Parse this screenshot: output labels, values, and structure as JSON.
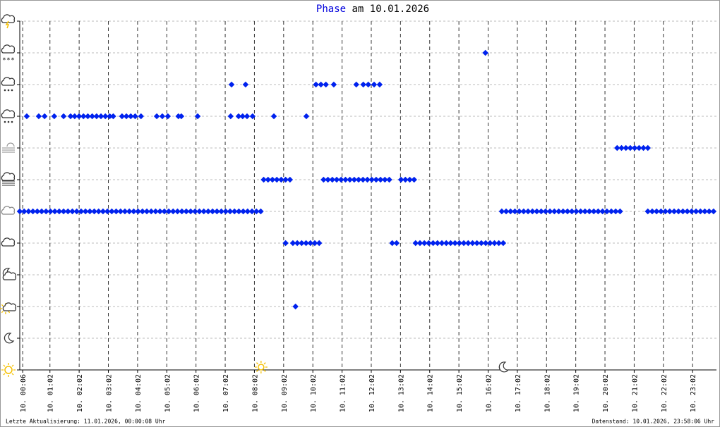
{
  "chart_data": {
    "type": "scatter",
    "title_parts": [
      "Phase",
      "am 10.01.2026"
    ],
    "footer_left": "Letzte Aktualisierung: 11.01.2026, 00:00:08 Uhr",
    "footer_right": "Datenstand: 10.01.2026, 23:58:06 Uhr",
    "xlim": [
      0,
      23.85
    ],
    "ylim": [
      0,
      11
    ],
    "yticks": [
      0,
      1,
      2,
      3,
      4,
      5,
      6,
      7,
      8,
      9,
      10,
      11
    ],
    "xticks": [
      {
        "value": 0.1,
        "label": "10. 00:06"
      },
      {
        "value": 1.033,
        "label": "10. 01:02"
      },
      {
        "value": 2.033,
        "label": "10. 02:02"
      },
      {
        "value": 3.033,
        "label": "10. 03:02"
      },
      {
        "value": 4.033,
        "label": "10. 04:02"
      },
      {
        "value": 5.033,
        "label": "10. 05:02"
      },
      {
        "value": 6.033,
        "label": "10. 06:02"
      },
      {
        "value": 7.033,
        "label": "10. 07:02"
      },
      {
        "value": 8.033,
        "label": "10. 08:02"
      },
      {
        "value": 9.033,
        "label": "10. 09:02"
      },
      {
        "value": 10.033,
        "label": "10. 10:02"
      },
      {
        "value": 11.033,
        "label": "10. 11:02"
      },
      {
        "value": 12.033,
        "label": "10. 12:02"
      },
      {
        "value": 13.033,
        "label": "10. 13:02"
      },
      {
        "value": 14.033,
        "label": "10. 14:02"
      },
      {
        "value": 15.033,
        "label": "10. 15:02"
      },
      {
        "value": 16.033,
        "label": "10. 16:02"
      },
      {
        "value": 17.033,
        "label": "10. 17:02"
      },
      {
        "value": 18.033,
        "label": "10. 18:02"
      },
      {
        "value": 19.033,
        "label": "10. 19:02"
      },
      {
        "value": 20.033,
        "label": "10. 20:02"
      },
      {
        "value": 21.033,
        "label": "10. 21:02"
      },
      {
        "value": 22.033,
        "label": "10. 22:02"
      },
      {
        "value": 23.033,
        "label": "10. 23:02"
      }
    ],
    "grid": true,
    "sunrise": 8.26,
    "sunset": 16.55,
    "series": [
      {
        "color": "#0022ee",
        "x": [
          0.0,
          0.15,
          0.3,
          0.45,
          0.6,
          0.75,
          0.9,
          1.05,
          1.2,
          1.35,
          1.5,
          1.65,
          1.8,
          1.95,
          2.1,
          2.25,
          2.4,
          2.55,
          2.7,
          2.85,
          3.0,
          3.15,
          3.3,
          3.45,
          3.6,
          3.75,
          3.9,
          4.05,
          4.2,
          4.35,
          4.5,
          4.65,
          4.8,
          4.95,
          5.1,
          5.25,
          5.4,
          5.55,
          5.7,
          5.85,
          6.0,
          6.15,
          6.3,
          6.45,
          6.6,
          6.75,
          6.9,
          7.05,
          7.2,
          7.35,
          7.5,
          7.65,
          7.8,
          7.95,
          8.1,
          8.25,
          16.5,
          16.65,
          16.8,
          16.95,
          17.1,
          17.25,
          17.4,
          17.55,
          17.7,
          17.85,
          18.0,
          18.15,
          18.3,
          18.45,
          18.6,
          18.75,
          18.9,
          19.05,
          19.2,
          19.35,
          19.5,
          19.65,
          19.8,
          19.95,
          20.1,
          20.25,
          20.4,
          20.55,
          21.5,
          21.65,
          21.8,
          21.95,
          22.1,
          22.25,
          22.4,
          22.55,
          22.7,
          22.85,
          23.0,
          23.15,
          23.3,
          23.45,
          23.6,
          23.75
        ],
        "values": [
          5,
          5,
          5,
          5,
          5,
          5,
          5,
          5,
          5,
          5,
          5,
          5,
          5,
          5,
          5,
          5,
          5,
          5,
          5,
          5,
          5,
          5,
          5,
          5,
          5,
          5,
          5,
          5,
          5,
          5,
          5,
          5,
          5,
          5,
          5,
          5,
          5,
          5,
          5,
          5,
          5,
          5,
          5,
          5,
          5,
          5,
          5,
          5,
          5,
          5,
          5,
          5,
          5,
          5,
          5,
          5,
          5,
          5,
          5,
          5,
          5,
          5,
          5,
          5,
          5,
          5,
          5,
          5,
          5,
          5,
          5,
          5,
          5,
          5,
          5,
          5,
          5,
          5,
          5,
          5,
          5,
          5,
          5,
          5,
          5,
          5,
          5,
          5,
          5,
          5,
          5,
          5,
          5,
          5,
          5,
          5,
          5,
          5,
          5,
          5
        ]
      },
      {
        "color": "#0022ee",
        "x": [
          8.35,
          8.5,
          8.65,
          8.8,
          8.95,
          9.1,
          9.25,
          10.4,
          10.55,
          10.7,
          10.85,
          11.0,
          11.15,
          11.3,
          11.45,
          11.6,
          11.75,
          11.9,
          12.05,
          12.2,
          12.35,
          12.5,
          12.65,
          13.05,
          13.2,
          13.35,
          13.5
        ],
        "values": [
          6,
          6,
          6,
          6,
          6,
          6,
          6,
          6,
          6,
          6,
          6,
          6,
          6,
          6,
          6,
          6,
          6,
          6,
          6,
          6,
          6,
          6,
          6,
          6,
          6,
          6,
          6
        ]
      },
      {
        "color": "#0022ee",
        "x": [
          9.1,
          9.35,
          9.5,
          9.65,
          9.8,
          9.95,
          10.1,
          10.25,
          12.75,
          12.9,
          13.55,
          13.7,
          13.85,
          14.0,
          14.15,
          14.3,
          14.45,
          14.6,
          14.75,
          14.9,
          15.05,
          15.2,
          15.35,
          15.5,
          15.65,
          15.8,
          15.95,
          16.1,
          16.25,
          16.4,
          16.55
        ],
        "values": [
          4,
          4,
          4,
          4,
          4,
          4,
          4,
          4,
          4,
          4,
          4,
          4,
          4,
          4,
          4,
          4,
          4,
          4,
          4,
          4,
          4,
          4,
          4,
          4,
          4,
          4,
          4,
          4,
          4,
          4,
          4
        ]
      },
      {
        "color": "#0022ee",
        "x": [
          20.45,
          20.6,
          20.75,
          20.9,
          21.05,
          21.2,
          21.35,
          21.5
        ],
        "values": [
          7,
          7,
          7,
          7,
          7,
          7,
          7,
          7
        ]
      },
      {
        "color": "#0022ee",
        "x": [
          0.24,
          0.65,
          0.85,
          1.18,
          1.5,
          1.74,
          1.88,
          2.03,
          2.18,
          2.33,
          2.48,
          2.63,
          2.78,
          2.93,
          3.08,
          3.2,
          3.5,
          3.65,
          3.8,
          3.95,
          4.15,
          4.69,
          4.88,
          5.07,
          5.43,
          5.53,
          6.09,
          7.22,
          7.49,
          7.63,
          7.78,
          7.97,
          8.7,
          9.81
        ],
        "values": [
          8,
          8,
          8,
          8,
          8,
          8,
          8,
          8,
          8,
          8,
          8,
          8,
          8,
          8,
          8,
          8,
          8,
          8,
          8,
          8,
          8,
          8,
          8,
          8,
          8,
          8,
          8,
          8,
          8,
          8,
          8,
          8,
          8,
          8
        ]
      },
      {
        "color": "#0022ee",
        "x": [
          7.25,
          7.73,
          10.14,
          10.31,
          10.48,
          10.75,
          11.52,
          11.76,
          11.93,
          12.13,
          12.32
        ],
        "values": [
          9,
          9,
          9,
          9,
          9,
          9,
          9,
          9,
          9,
          9,
          9
        ]
      },
      {
        "color": "#0022ee",
        "x": [
          15.94
        ],
        "values": [
          10
        ]
      },
      {
        "color": "#0022ee",
        "x": [
          9.44
        ],
        "values": [
          2
        ]
      }
    ]
  }
}
